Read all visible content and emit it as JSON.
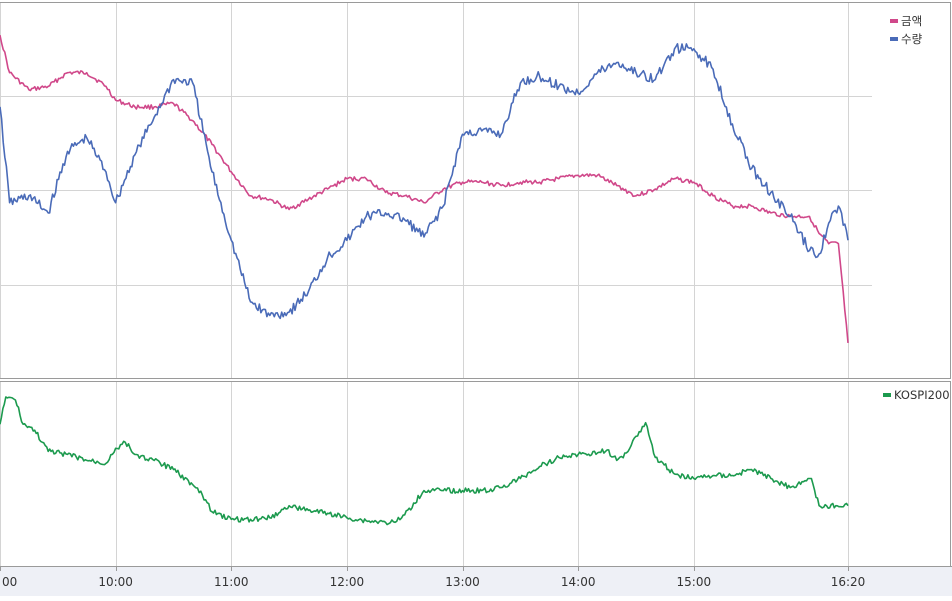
{
  "chart_data": [
    {
      "type": "line",
      "panel": "top",
      "legend": "top-right",
      "grid": true,
      "x_unit": "time",
      "xlim": [
        "09:00",
        "16:20"
      ],
      "ylim": [
        0,
        100
      ],
      "series": [
        {
          "name": "금액",
          "color": "#d0488a",
          "x": [
            "09:00",
            "09:05",
            "09:15",
            "09:25",
            "09:35",
            "09:45",
            "09:55",
            "10:00",
            "10:10",
            "10:20",
            "10:30",
            "10:40",
            "10:50",
            "11:00",
            "11:10",
            "11:20",
            "11:30",
            "11:40",
            "11:50",
            "12:00",
            "12:10",
            "12:20",
            "12:30",
            "12:40",
            "12:50",
            "13:00",
            "13:10",
            "13:20",
            "13:30",
            "13:40",
            "13:50",
            "14:00",
            "14:10",
            "14:20",
            "14:30",
            "14:40",
            "14:50",
            "15:00",
            "15:10",
            "15:20",
            "15:30",
            "15:40",
            "15:50",
            "16:00",
            "16:05",
            "16:10",
            "16:15",
            "16:20"
          ],
          "y": [
            95,
            84,
            79,
            80,
            84,
            84,
            80,
            76,
            74,
            74,
            75,
            70,
            63,
            55,
            48,
            47,
            44,
            47,
            50,
            53,
            53,
            49,
            48,
            46,
            50,
            52,
            52,
            51,
            52,
            52,
            53,
            54,
            54,
            51,
            48,
            50,
            53,
            52,
            48,
            45,
            45,
            43,
            42,
            42,
            37,
            34,
            34,
            5
          ]
        },
        {
          "name": "수량",
          "color": "#4a6bb8",
          "x": [
            "09:00",
            "09:05",
            "09:15",
            "09:25",
            "09:35",
            "09:45",
            "09:55",
            "10:00",
            "10:10",
            "10:20",
            "10:30",
            "10:40",
            "10:50",
            "11:00",
            "11:10",
            "11:20",
            "11:30",
            "11:40",
            "11:50",
            "12:00",
            "12:10",
            "12:20",
            "12:30",
            "12:40",
            "12:50",
            "13:00",
            "13:10",
            "13:20",
            "13:30",
            "13:40",
            "13:50",
            "14:00",
            "14:10",
            "14:20",
            "14:30",
            "14:40",
            "14:50",
            "15:00",
            "15:10",
            "15:20",
            "15:30",
            "15:40",
            "15:50",
            "16:00",
            "16:05",
            "16:10",
            "16:15",
            "16:20"
          ],
          "y": [
            74,
            46,
            48,
            43,
            61,
            65,
            55,
            46,
            60,
            71,
            82,
            81,
            55,
            35,
            17,
            13,
            14,
            20,
            30,
            35,
            42,
            43,
            41,
            36,
            45,
            66,
            67,
            66,
            81,
            83,
            80,
            78,
            84,
            87,
            84,
            82,
            91,
            91,
            85,
            69,
            56,
            49,
            42,
            32,
            31,
            40,
            45,
            35
          ]
        }
      ]
    },
    {
      "type": "line",
      "panel": "bottom",
      "legend": "top-right",
      "grid": true,
      "x_unit": "time",
      "xlim": [
        "09:00",
        "16:20"
      ],
      "ylim": [
        0,
        100
      ],
      "x_ticks": [
        "09:00",
        "10:00",
        "11:00",
        "12:00",
        "13:00",
        "14:00",
        "15:00",
        "16:20"
      ],
      "x_tick_labels": [
        "00",
        "10:00",
        "11:00",
        "12:00",
        "13:00",
        "14:00",
        "15:00",
        "16:20"
      ],
      "series": [
        {
          "name": "KOSPI200",
          "color": "#1c9a4e",
          "x": [
            "09:00",
            "09:03",
            "09:08",
            "09:12",
            "09:18",
            "09:25",
            "09:35",
            "09:45",
            "09:55",
            "10:00",
            "10:05",
            "10:10",
            "10:20",
            "10:30",
            "10:40",
            "10:45",
            "10:50",
            "11:00",
            "11:10",
            "11:20",
            "11:30",
            "11:40",
            "11:50",
            "12:00",
            "12:10",
            "12:20",
            "12:25",
            "12:30",
            "12:40",
            "12:50",
            "13:00",
            "13:10",
            "13:20",
            "13:30",
            "13:40",
            "13:50",
            "14:00",
            "14:10",
            "14:15",
            "14:20",
            "14:25",
            "14:30",
            "14:35",
            "14:40",
            "14:50",
            "15:00",
            "15:10",
            "15:20",
            "15:30",
            "15:40",
            "15:50",
            "16:00",
            "16:01",
            "16:05",
            "16:20"
          ],
          "y": [
            82,
            100,
            98,
            82,
            78,
            64,
            62,
            58,
            56,
            66,
            70,
            62,
            58,
            52,
            42,
            35,
            24,
            19,
            19,
            20,
            28,
            25,
            23,
            20,
            18,
            17,
            17,
            22,
            38,
            38,
            38,
            38,
            40,
            46,
            54,
            60,
            62,
            63,
            65,
            58,
            63,
            74,
            83,
            60,
            49,
            46,
            48,
            48,
            52,
            46,
            40,
            46,
            46,
            28,
            28
          ]
        }
      ]
    }
  ]
}
